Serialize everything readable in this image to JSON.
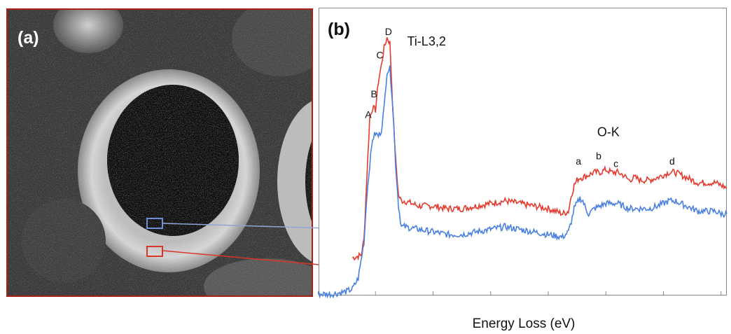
{
  "panel_a": {
    "label": "(a)",
    "box_colors": {
      "inner": "#6b8fd8",
      "outer": "#d9362a"
    }
  },
  "chart_data": {
    "type": "line",
    "panel_label": "(b)",
    "xlabel": "Energy Loss (eV)",
    "ylabel": "",
    "xlim": [
      440,
      582
    ],
    "xticks": [
      440,
      460,
      480,
      500,
      520,
      540,
      560,
      580
    ],
    "grid": false,
    "annotations": [
      {
        "text": "Ti-L3,2",
        "x": 471,
        "y": 0.96
      },
      {
        "text": "O-K",
        "x": 537,
        "y": 0.61
      }
    ],
    "peak_labels": {
      "red": [
        {
          "text": "A",
          "x": 457.5,
          "y": 0.68
        },
        {
          "text": "B",
          "x": 459.5,
          "y": 0.76
        },
        {
          "text": "C",
          "x": 461.5,
          "y": 0.91
        },
        {
          "text": "D",
          "x": 464.5,
          "y": 1.0
        },
        {
          "text": "a",
          "x": 530.5,
          "y": 0.5
        },
        {
          "text": "b",
          "x": 537.5,
          "y": 0.52
        },
        {
          "text": "c",
          "x": 543.5,
          "y": 0.49
        },
        {
          "text": "d",
          "x": 563,
          "y": 0.5
        }
      ]
    },
    "series": [
      {
        "color": "#e53b2f",
        "x": [
          452,
          455,
          456,
          457,
          458,
          459,
          460,
          461,
          462,
          463,
          464,
          465,
          466,
          467,
          468,
          469,
          470,
          475,
          480,
          485,
          490,
          495,
          500,
          505,
          510,
          515,
          520,
          525,
          527,
          528,
          529,
          530,
          531,
          532,
          534,
          536,
          538,
          540,
          542,
          544,
          546,
          548,
          550,
          552,
          555,
          558,
          560,
          562,
          564,
          566,
          568,
          570,
          572,
          574,
          576,
          578,
          580,
          582
        ],
        "y": [
          0.14,
          0.15,
          0.21,
          0.45,
          0.68,
          0.72,
          0.71,
          0.82,
          0.88,
          0.95,
          0.99,
          0.97,
          0.72,
          0.52,
          0.38,
          0.36,
          0.36,
          0.34,
          0.34,
          0.33,
          0.33,
          0.34,
          0.35,
          0.36,
          0.35,
          0.34,
          0.33,
          0.31,
          0.32,
          0.38,
          0.42,
          0.44,
          0.45,
          0.45,
          0.46,
          0.47,
          0.47,
          0.48,
          0.47,
          0.47,
          0.46,
          0.44,
          0.45,
          0.44,
          0.44,
          0.45,
          0.46,
          0.47,
          0.47,
          0.46,
          0.45,
          0.44,
          0.43,
          0.43,
          0.43,
          0.43,
          0.42,
          0.41
        ]
      },
      {
        "color": "#4a80e0",
        "x": [
          440,
          445,
          450,
          452,
          454,
          456,
          457,
          458,
          459,
          460,
          461,
          462,
          463,
          464,
          465,
          466,
          467,
          468,
          469,
          470,
          475,
          480,
          485,
          490,
          495,
          500,
          505,
          510,
          515,
          520,
          525,
          527,
          528,
          529,
          530,
          531,
          532,
          533,
          534,
          536,
          538,
          540,
          542,
          544,
          546,
          548,
          550,
          552,
          555,
          558,
          560,
          562,
          564,
          566,
          568,
          570,
          572,
          574,
          576,
          578,
          580,
          582
        ],
        "y": [
          0.0,
          0.0,
          0.01,
          0.02,
          0.06,
          0.2,
          0.38,
          0.5,
          0.6,
          0.62,
          0.61,
          0.63,
          0.72,
          0.86,
          0.87,
          0.73,
          0.5,
          0.34,
          0.26,
          0.26,
          0.25,
          0.24,
          0.23,
          0.23,
          0.24,
          0.25,
          0.26,
          0.25,
          0.24,
          0.23,
          0.22,
          0.24,
          0.28,
          0.33,
          0.35,
          0.37,
          0.36,
          0.33,
          0.31,
          0.33,
          0.34,
          0.35,
          0.35,
          0.35,
          0.34,
          0.33,
          0.33,
          0.33,
          0.33,
          0.34,
          0.35,
          0.36,
          0.36,
          0.35,
          0.34,
          0.33,
          0.32,
          0.32,
          0.32,
          0.32,
          0.31,
          0.31
        ]
      }
    ]
  }
}
